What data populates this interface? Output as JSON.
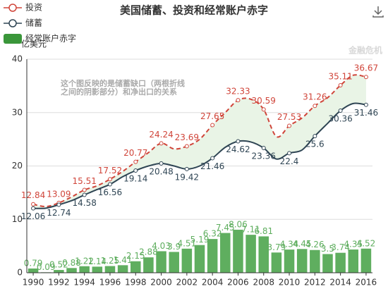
{
  "chart_data": {
    "type": "line_bar",
    "title": "美国储蓄、投资和经常账户赤字",
    "y_axis_label": "亿美元",
    "watermark": "金融危机",
    "annotation": [
      "这个图反映的是储蓄缺口（两根折线",
      "之间的阴影部分）和净出口的关系"
    ],
    "categories": [
      "1990",
      null,
      "1992",
      null,
      "1994",
      null,
      "1996",
      null,
      "1998",
      null,
      "2000",
      null,
      "2002",
      null,
      "2004",
      null,
      "2006",
      null,
      "2008",
      null,
      "2010",
      null,
      "2012",
      null,
      "2014",
      null,
      "2016"
    ],
    "ylim": [
      0,
      40
    ],
    "yticks": [
      0,
      10,
      20,
      30,
      40
    ],
    "grid": true,
    "fill_between": "#e9f4e6",
    "series": [
      {
        "name": "投资",
        "type": "line",
        "dashed": true,
        "color": "#d0453a",
        "values": [
          12.84,
          12.4,
          13.09,
          14.2,
          15.51,
          16.3,
          17.52,
          19.0,
          20.77,
          22.5,
          24.24,
          23.2,
          23.69,
          25.0,
          27.65,
          30.0,
          32.33,
          32.5,
          30.59,
          25.5,
          27.53,
          29.0,
          31.26,
          32.8,
          35.11,
          37.0,
          36.67
        ],
        "value_labels": [
          "12.84",
          null,
          "13.09",
          null,
          "15.51",
          null,
          "17.52",
          null,
          "20.77",
          null,
          "24.24",
          null,
          "23.69",
          null,
          "27.65",
          null,
          "32.33",
          null,
          "30.59",
          null,
          "27.53",
          null,
          "31.26",
          null,
          "35.11",
          null,
          "36.67"
        ]
      },
      {
        "name": "储蓄",
        "type": "line",
        "dashed": false,
        "color": "#2f4554",
        "values": [
          12.06,
          12.1,
          12.74,
          13.5,
          14.58,
          15.6,
          16.56,
          18.0,
          19.14,
          20.0,
          20.48,
          20.0,
          19.42,
          20.0,
          21.46,
          23.5,
          24.62,
          24.5,
          23.36,
          21.3,
          22.4,
          23.0,
          25.6,
          28.0,
          30.36,
          31.7,
          31.46
        ],
        "value_labels": [
          "12.06",
          null,
          "12.74",
          null,
          "14.58",
          null,
          "16.56",
          null,
          "19.14",
          null,
          "20.48",
          null,
          "19.42",
          null,
          "21.46",
          null,
          "24.62",
          null,
          "23.36",
          null,
          "22.4",
          null,
          "25.6",
          null,
          "30.36",
          null,
          "31.46"
        ]
      },
      {
        "name": "经常账户赤字",
        "type": "bar",
        "color": "#5fae5f",
        "legend_color": "#3a963a",
        "values": [
          0.79,
          0.09,
          0.52,
          0.88,
          1.22,
          1.14,
          1.25,
          1.41,
          2.15,
          2.88,
          4.03,
          3.9,
          4.51,
          5.19,
          6.32,
          7.45,
          8.06,
          7.11,
          6.81,
          3.79,
          4.34,
          4.45,
          4.26,
          3.5,
          3.74,
          4.35,
          4.52
        ]
      }
    ]
  }
}
